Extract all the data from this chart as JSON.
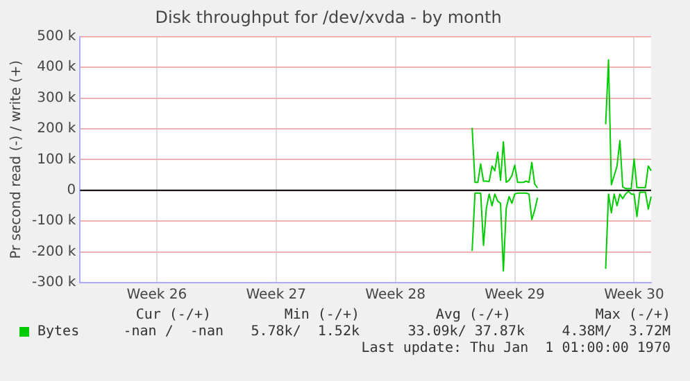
{
  "chart_data": {
    "type": "line",
    "title": "Disk throughput for /dev/xvda - by month",
    "ylabel": "Pr second read (-) / write (+)",
    "categories": [
      null,
      null,
      null,
      null,
      null,
      null,
      null,
      null,
      null,
      null,
      null,
      null,
      null,
      null,
      null,
      null,
      null,
      null,
      null,
      null,
      null,
      null,
      null,
      null,
      null,
      null,
      null,
      "Week 26",
      null,
      null,
      null,
      null,
      null,
      null,
      null,
      null,
      null,
      null,
      null,
      null,
      null,
      null,
      null,
      null,
      null,
      null,
      null,
      null,
      null,
      null,
      null,
      null,
      null,
      null,
      null,
      null,
      null,
      null,
      null,
      null,
      null,
      null,
      null,
      null,
      null,
      null,
      null,
      null,
      null,
      "Week 27",
      null,
      null,
      null,
      null,
      null,
      null,
      null,
      null,
      null,
      null,
      null,
      null,
      null,
      null,
      null,
      null,
      null,
      null,
      null,
      null,
      null,
      null,
      null,
      null,
      null,
      null,
      null,
      null,
      null,
      null,
      null,
      null,
      null,
      null,
      null,
      null,
      null,
      null,
      null,
      null,
      null,
      "Week 28",
      null,
      null,
      null,
      null,
      null,
      null,
      null,
      null,
      null,
      null,
      null,
      null,
      null,
      null,
      null,
      null,
      null,
      null,
      null,
      null,
      null,
      null,
      null,
      null,
      null,
      null,
      null,
      null,
      null,
      null,
      null,
      null,
      null,
      null,
      null,
      null,
      null,
      null,
      null,
      null,
      null,
      "Week 29",
      null,
      null,
      null,
      null,
      null,
      null,
      null,
      null,
      null,
      null,
      null,
      null,
      null,
      null,
      null,
      null,
      null,
      null,
      null,
      null,
      null,
      null,
      null,
      null,
      null,
      null,
      null,
      null,
      null,
      null,
      null,
      null,
      null,
      null,
      null,
      null,
      null,
      null,
      null,
      null,
      null,
      "Week 30",
      null,
      null,
      null,
      null,
      null,
      null
    ],
    "ylim": [
      -300000,
      500000
    ],
    "yticks": [
      {
        "value": -300000,
        "label": "-300 k"
      },
      {
        "value": -200000,
        "label": "-200 k"
      },
      {
        "value": -100000,
        "label": "-100 k"
      },
      0,
      {
        "value": 100000,
        "label": "100 k"
      },
      {
        "value": 200000,
        "label": "200 k"
      },
      {
        "value": 300000,
        "label": "300 k"
      },
      {
        "value": 400000,
        "label": "400 k"
      },
      {
        "value": 500000,
        "label": "500 k"
      }
    ],
    "grid": true,
    "legend": "bottom left",
    "marker": "none",
    "line_style": "solid",
    "ref_lines": [
      {
        "axis": "y",
        "value": 0,
        "color": "#000000"
      }
    ],
    "series": [
      {
        "name": "Bytes",
        "color": "#00cc00",
        "values": [
          null,
          null,
          null,
          null,
          null,
          null,
          null,
          null,
          null,
          null,
          null,
          null,
          null,
          null,
          null,
          null,
          null,
          null,
          null,
          null,
          null,
          null,
          null,
          null,
          null,
          null,
          null,
          null,
          null,
          null,
          null,
          null,
          null,
          null,
          null,
          null,
          null,
          null,
          null,
          null,
          null,
          null,
          null,
          null,
          null,
          null,
          null,
          null,
          null,
          null,
          null,
          null,
          null,
          null,
          null,
          null,
          null,
          null,
          null,
          null,
          null,
          null,
          null,
          null,
          null,
          null,
          null,
          null,
          null,
          null,
          null,
          null,
          null,
          null,
          null,
          null,
          null,
          null,
          null,
          null,
          null,
          null,
          null,
          null,
          null,
          null,
          null,
          null,
          null,
          null,
          null,
          null,
          null,
          null,
          null,
          null,
          null,
          null,
          null,
          null,
          null,
          null,
          null,
          null,
          null,
          null,
          null,
          null,
          null,
          null,
          null,
          null,
          null,
          null,
          null,
          null,
          null,
          null,
          null,
          null,
          null,
          null,
          null,
          null,
          null,
          null,
          null,
          null,
          null,
          null,
          null,
          null,
          null,
          null,
          null,
          null,
          null,
          null,
          203000,
          26000,
          26000,
          86000,
          30000,
          30000,
          29000,
          79000,
          64000,
          124000,
          33000,
          158000,
          26000,
          33000,
          48000,
          82000,
          26000,
          26000,
          26000,
          30000,
          26000,
          91000,
          21000,
          8000,
          null,
          null,
          null,
          null,
          null,
          null,
          null,
          null,
          null,
          null,
          null,
          null,
          null,
          null,
          null,
          null,
          null,
          null,
          null,
          null,
          null,
          null,
          null,
          215000,
          424000,
          18000,
          48000,
          79000,
          162000,
          11000,
          6000,
          6000,
          6000,
          102000,
          9000,
          9000,
          9000,
          9000,
          79000,
          64000
        ]
      },
      {
        "color": "#00cc00",
        "values": [
          null,
          null,
          null,
          null,
          null,
          null,
          null,
          null,
          null,
          null,
          null,
          null,
          null,
          null,
          null,
          null,
          null,
          null,
          null,
          null,
          null,
          null,
          null,
          null,
          null,
          null,
          null,
          null,
          null,
          null,
          null,
          null,
          null,
          null,
          null,
          null,
          null,
          null,
          null,
          null,
          null,
          null,
          null,
          null,
          null,
          null,
          null,
          null,
          null,
          null,
          null,
          null,
          null,
          null,
          null,
          null,
          null,
          null,
          null,
          null,
          null,
          null,
          null,
          null,
          null,
          null,
          null,
          null,
          null,
          null,
          null,
          null,
          null,
          null,
          null,
          null,
          null,
          null,
          null,
          null,
          null,
          null,
          null,
          null,
          null,
          null,
          null,
          null,
          null,
          null,
          null,
          null,
          null,
          null,
          null,
          null,
          null,
          null,
          null,
          null,
          null,
          null,
          null,
          null,
          null,
          null,
          null,
          null,
          null,
          null,
          null,
          null,
          null,
          null,
          null,
          null,
          null,
          null,
          null,
          null,
          null,
          null,
          null,
          null,
          null,
          null,
          null,
          null,
          null,
          null,
          null,
          null,
          null,
          null,
          null,
          null,
          null,
          null,
          -197000,
          -9000,
          -9000,
          -9000,
          -179000,
          -58000,
          -12000,
          -50000,
          -12000,
          -35000,
          -42000,
          -262000,
          -58000,
          -20000,
          -42000,
          -12000,
          -9000,
          -9000,
          -9000,
          -9000,
          -12000,
          -95000,
          -65000,
          -24000,
          null,
          null,
          null,
          null,
          null,
          null,
          null,
          null,
          null,
          null,
          null,
          null,
          null,
          null,
          null,
          null,
          null,
          null,
          null,
          null,
          null,
          null,
          null,
          -255000,
          -12000,
          -73000,
          -12000,
          -50000,
          -12000,
          -27000,
          -12000,
          -3000,
          -12000,
          -12000,
          -85000,
          -6000,
          -6000,
          -6000,
          -61000,
          -20000
        ]
      }
    ],
    "annotations": [
      "Cur (-/+)",
      "Min (-/+)",
      "Avg (-/+)",
      "Max (-/+)",
      "-nan /  -nan",
      "5.78k/  1.52k",
      "33.09k/ 37.87k",
      "4.38M/  3.72M",
      "Last update: Thu Jan  1 01:00:00 1970"
    ]
  }
}
